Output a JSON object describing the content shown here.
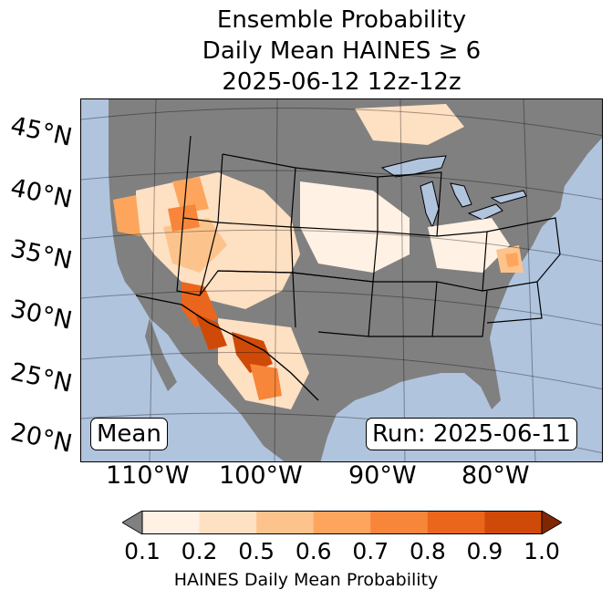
{
  "title": {
    "line1": "Ensemble Probability",
    "line2": "Daily Mean HAINES ≥ 6",
    "line3": "2025-06-12 12z-12z"
  },
  "map": {
    "ocean_color": "#b0c4de",
    "land_color": "#808080",
    "lat_labels": [
      "45°N",
      "40°N",
      "35°N",
      "30°N",
      "25°N",
      "20°N"
    ],
    "lon_labels": [
      "110°W",
      "100°W",
      "90°W",
      "80°W"
    ],
    "stat_badge": "Mean",
    "run_badge": "Run: 2025-06-11"
  },
  "colorbar": {
    "ticks": [
      "0.1",
      "0.2",
      "0.5",
      "0.6",
      "0.7",
      "0.8",
      "0.9",
      "1.0"
    ],
    "colors": [
      "#fff1e4",
      "#fee0c3",
      "#fdc38c",
      "#fda55c",
      "#f7853a",
      "#e9661c",
      "#cf4a08"
    ],
    "under_color": "#808080",
    "over_color": "#7f2704",
    "label": "HAINES Daily Mean Probability"
  }
}
